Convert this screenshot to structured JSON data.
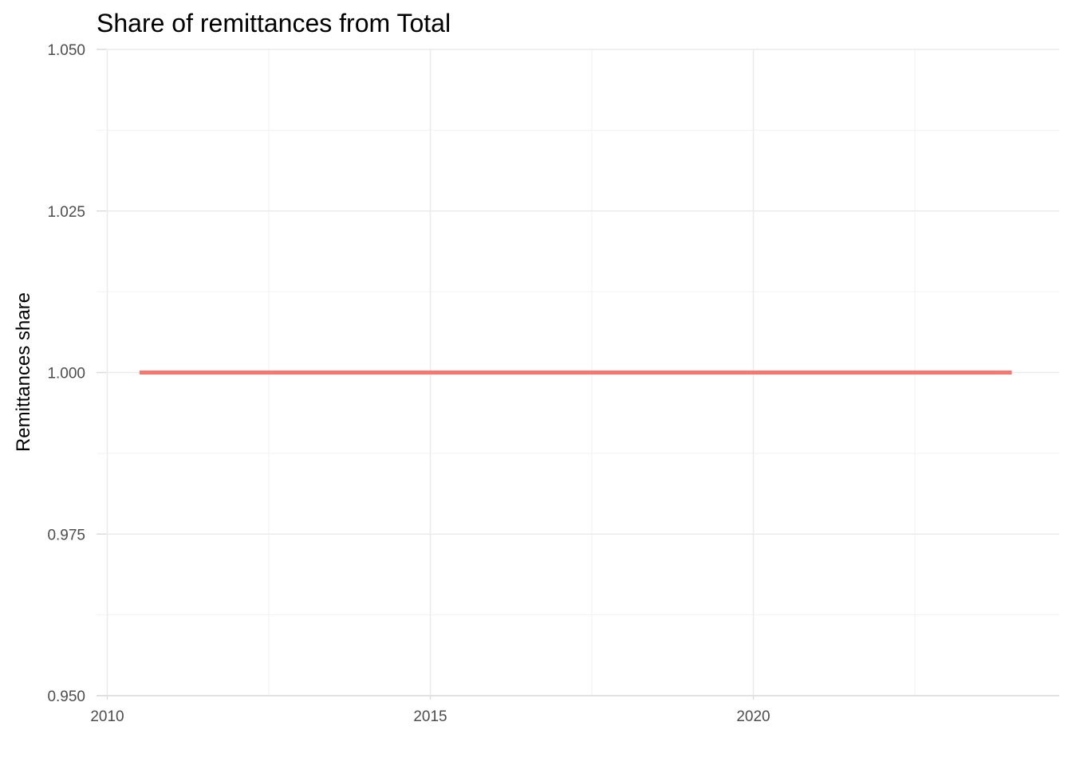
{
  "chart_data": {
    "type": "line",
    "title": "Share of remittances from Total",
    "xlabel": "",
    "ylabel": "Remittances share",
    "xlim": [
      2010,
      2024.2
    ],
    "ylim": [
      0.95,
      1.05
    ],
    "x_ticks": [
      2010,
      2015,
      2020
    ],
    "x_tick_labels": [
      "2010",
      "2015",
      "2020"
    ],
    "y_ticks": [
      0.95,
      0.975,
      1.0,
      1.025,
      1.05
    ],
    "y_tick_labels": [
      "0.950",
      "0.975",
      "1.000",
      "1.025",
      "1.050"
    ],
    "grid": true,
    "legend": "none",
    "series": [
      {
        "color": "#f8766d",
        "x": [
          2010.5,
          2024
        ],
        "y": [
          1.0,
          1.0
        ]
      }
    ]
  }
}
